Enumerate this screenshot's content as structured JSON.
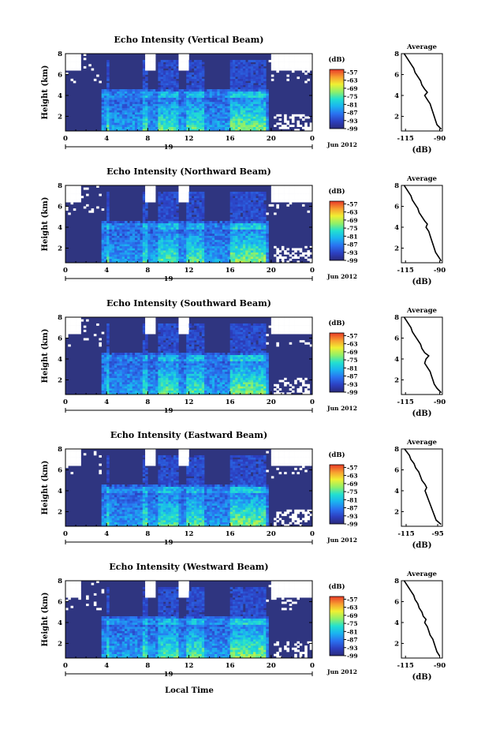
{
  "figure": {
    "xlabel_bottom": "Local Time"
  },
  "chart_data": [
    {
      "type": "heatmap",
      "title": "Echo Intensity (Vertical Beam)",
      "ylabel": "Height (km)",
      "x_ticks": [
        "0",
        "4",
        "8",
        "12",
        "16",
        "20",
        "0"
      ],
      "date_label": "19",
      "month_label": "Jun 2012",
      "xlim": [
        0,
        24
      ],
      "ylim": [
        0.6,
        8
      ],
      "y_ticks": [
        "2",
        "4",
        "6",
        "8"
      ],
      "colorbar": {
        "unit": "(dB)",
        "ticks": [
          "-57",
          "-63",
          "-69",
          "-75",
          "-81",
          "-87",
          "-93",
          "-99"
        ],
        "range": [
          -99,
          -55
        ]
      },
      "profile": {
        "title": "Average",
        "xlabel": "(dB)",
        "x_ticks": [
          "-115",
          "-90"
        ],
        "xlim": [
          -118,
          -88
        ],
        "y_ticks": [
          "2",
          "4",
          "6",
          "8"
        ],
        "height_km": [
          0.8,
          1.2,
          1.6,
          2.0,
          2.4,
          2.8,
          3.2,
          3.6,
          4.0,
          4.3,
          4.6,
          5.0,
          5.4,
          5.8,
          6.2,
          6.6,
          7.0,
          7.4,
          7.8,
          8.0
        ],
        "value_db": [
          -89,
          -92,
          -93,
          -94,
          -95,
          -96,
          -97,
          -99,
          -101,
          -99,
          -101,
          -103,
          -104,
          -106,
          -108,
          -109,
          -111,
          -113,
          -115,
          -116
        ]
      }
    },
    {
      "type": "heatmap",
      "title": "Echo Intensity (Northward Beam)",
      "ylabel": "Height (km)",
      "x_ticks": [
        "0",
        "4",
        "8",
        "12",
        "16",
        "20",
        "0"
      ],
      "date_label": "19",
      "month_label": "Jun 2012",
      "xlim": [
        0,
        24
      ],
      "ylim": [
        0.6,
        8
      ],
      "y_ticks": [
        "2",
        "4",
        "6",
        "8"
      ],
      "colorbar": {
        "unit": "(dB)",
        "ticks": [
          "-57",
          "-63",
          "-69",
          "-75",
          "-81",
          "-87",
          "-93",
          "-99"
        ],
        "range": [
          -99,
          -55
        ]
      },
      "profile": {
        "title": "Average",
        "xlabel": "(dB)",
        "x_ticks": [
          "-115",
          "-90"
        ],
        "xlim": [
          -118,
          -88
        ],
        "y_ticks": [
          "2",
          "4",
          "6",
          "8"
        ],
        "height_km": [
          0.8,
          1.2,
          1.6,
          2.0,
          2.4,
          2.8,
          3.2,
          3.6,
          4.0,
          4.3,
          4.6,
          5.0,
          5.4,
          5.8,
          6.2,
          6.6,
          7.0,
          7.4,
          7.8,
          8.0
        ],
        "value_db": [
          -89,
          -91,
          -93,
          -94,
          -95,
          -96,
          -97,
          -98,
          -100,
          -99,
          -101,
          -103,
          -105,
          -106,
          -108,
          -110,
          -111,
          -113,
          -115,
          -116
        ]
      }
    },
    {
      "type": "heatmap",
      "title": "Echo Intensity (Southward Beam)",
      "ylabel": "Height (km)",
      "x_ticks": [
        "0",
        "4",
        "8",
        "12",
        "16",
        "20",
        "0"
      ],
      "date_label": "19",
      "month_label": "Jun 2012",
      "xlim": [
        0,
        24
      ],
      "ylim": [
        0.6,
        8
      ],
      "y_ticks": [
        "2",
        "4",
        "6",
        "8"
      ],
      "colorbar": {
        "unit": "(dB)",
        "ticks": [
          "-57",
          "-63",
          "-69",
          "-75",
          "-81",
          "-87",
          "-93",
          "-99"
        ],
        "range": [
          -99,
          -55
        ]
      },
      "profile": {
        "title": "Average",
        "xlabel": "(dB)",
        "x_ticks": [
          "-115",
          "-90"
        ],
        "xlim": [
          -118,
          -88
        ],
        "y_ticks": [
          "2",
          "4",
          "6",
          "8"
        ],
        "height_km": [
          0.8,
          1.2,
          1.6,
          2.0,
          2.4,
          2.8,
          3.2,
          3.6,
          4.0,
          4.3,
          4.6,
          5.0,
          5.4,
          5.8,
          6.2,
          6.6,
          7.0,
          7.4,
          7.8,
          8.0
        ],
        "value_db": [
          -89,
          -92,
          -94,
          -95,
          -96,
          -97,
          -99,
          -101,
          -100,
          -98,
          -101,
          -103,
          -104,
          -106,
          -108,
          -110,
          -111,
          -113,
          -115,
          -116
        ]
      }
    },
    {
      "type": "heatmap",
      "title": "Echo Intensity (Eastward Beam)",
      "ylabel": "Height (km)",
      "x_ticks": [
        "0",
        "4",
        "8",
        "12",
        "16",
        "20",
        "0"
      ],
      "date_label": "19",
      "month_label": "Jun 2012",
      "xlim": [
        0,
        24
      ],
      "ylim": [
        0.6,
        8
      ],
      "y_ticks": [
        "2",
        "4",
        "6",
        "8"
      ],
      "colorbar": {
        "unit": "(dB)",
        "ticks": [
          "-57",
          "-63",
          "-69",
          "-75",
          "-81",
          "-87",
          "-93",
          "-99"
        ],
        "range": [
          -99,
          -55
        ]
      },
      "profile": {
        "title": "Average",
        "xlabel": "(dB)",
        "x_ticks": [
          "-115",
          "-95"
        ],
        "xlim": [
          -118,
          -92
        ],
        "y_ticks": [
          "2",
          "4",
          "6",
          "8"
        ],
        "height_km": [
          0.8,
          1.2,
          1.6,
          2.0,
          2.4,
          2.8,
          3.2,
          3.6,
          4.0,
          4.3,
          4.6,
          5.0,
          5.4,
          5.8,
          6.2,
          6.6,
          7.0,
          7.4,
          7.8,
          8.0
        ],
        "value_db": [
          -93,
          -96,
          -97,
          -98,
          -99,
          -100,
          -101,
          -102,
          -103,
          -102,
          -103,
          -105,
          -106,
          -107,
          -109,
          -110,
          -112,
          -113,
          -115,
          -116
        ]
      }
    },
    {
      "type": "heatmap",
      "title": "Echo Intensity (Westward Beam)",
      "ylabel": "Height (km)",
      "x_ticks": [
        "0",
        "4",
        "8",
        "12",
        "16",
        "20",
        "0"
      ],
      "date_label": "19",
      "month_label": "Jun 2012",
      "xlim": [
        0,
        24
      ],
      "ylim": [
        0.6,
        8
      ],
      "y_ticks": [
        "2",
        "4",
        "6",
        "8"
      ],
      "colorbar": {
        "unit": "(dB)",
        "ticks": [
          "-57",
          "-63",
          "-69",
          "-75",
          "-81",
          "-87",
          "-93",
          "-99"
        ],
        "range": [
          -99,
          -55
        ]
      },
      "profile": {
        "title": "Average",
        "xlabel": "(dB)",
        "x_ticks": [
          "-115",
          "-90"
        ],
        "xlim": [
          -118,
          -88
        ],
        "y_ticks": [
          "2",
          "4",
          "6",
          "8"
        ],
        "height_km": [
          0.8,
          1.2,
          1.6,
          2.0,
          2.4,
          2.8,
          3.2,
          3.6,
          4.0,
          4.3,
          4.6,
          5.0,
          5.4,
          5.8,
          6.2,
          6.6,
          7.0,
          7.4,
          7.8,
          8.0
        ],
        "value_db": [
          -90,
          -92,
          -93,
          -94,
          -95,
          -97,
          -98,
          -99,
          -101,
          -100,
          -102,
          -103,
          -105,
          -106,
          -108,
          -109,
          -111,
          -113,
          -115,
          -116
        ]
      }
    }
  ]
}
